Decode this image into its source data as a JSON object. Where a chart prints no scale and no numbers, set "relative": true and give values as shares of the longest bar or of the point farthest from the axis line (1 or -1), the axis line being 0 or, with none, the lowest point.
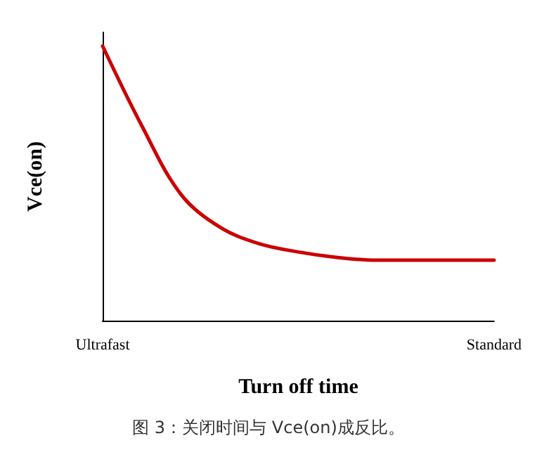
{
  "chart_data": {
    "type": "line",
    "relative": true,
    "xlabel": "Turn off time",
    "ylabel": "Vce(on)",
    "categories": [
      "Ultrafast",
      null,
      null,
      null,
      null,
      null,
      null,
      null,
      null,
      null,
      "Standard"
    ],
    "series": [
      {
        "color": "#cc0000",
        "values": [
          1,
          0.71,
          0.46,
          0.34,
          0.28,
          0.25,
          0.23,
          0.22,
          0.22,
          0.22,
          0.22
        ]
      }
    ],
    "annotations": [
      "图 3：关闭时间与 Vce(on)成反比。"
    ],
    "grid": false,
    "marker": "none",
    "line_style": "solid"
  }
}
